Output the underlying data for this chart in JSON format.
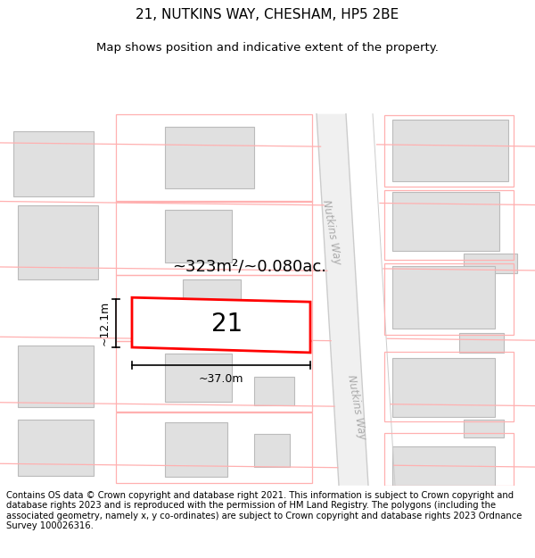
{
  "title_line1": "21, NUTKINS WAY, CHESHAM, HP5 2BE",
  "title_line2": "Map shows position and indicative extent of the property.",
  "footer_text": "Contains OS data © Crown copyright and database right 2021. This information is subject to Crown copyright and database rights 2023 and is reproduced with the permission of HM Land Registry. The polygons (including the associated geometry, namely x, y co-ordinates) are subject to Crown copyright and database rights 2023 Ordnance Survey 100026316.",
  "area_label": "~323m²/~0.080ac.",
  "width_label": "~37.0m",
  "height_label": "~12.1m",
  "plot_number": "21",
  "road_line_color": "#ffb0b0",
  "road_edge_color": "#cccccc",
  "building_fill": "#e0e0e0",
  "building_edge": "#bbbbbb",
  "plot_outline_color": "#ff0000",
  "title_fontsize": 11,
  "subtitle_fontsize": 9.5,
  "footer_fontsize": 7.2,
  "area_fontsize": 13,
  "label_fontsize": 9,
  "plot_num_fontsize": 20
}
